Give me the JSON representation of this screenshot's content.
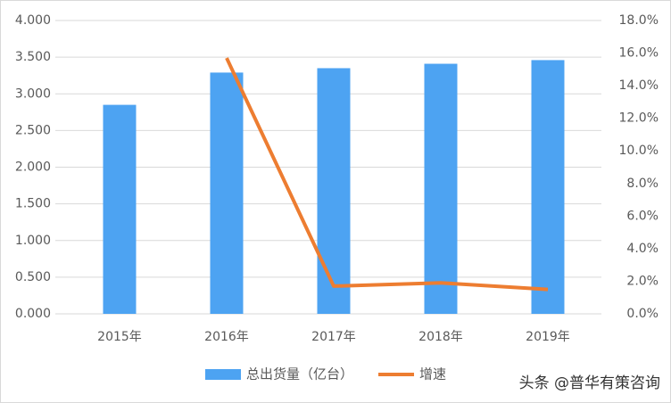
{
  "chart_data": {
    "type": "bar",
    "categories": [
      "2015年",
      "2016年",
      "2017年",
      "2018年",
      "2019年"
    ],
    "series": [
      {
        "name": "总出货量（亿台）",
        "color": "#4da3f2",
        "type": "bar",
        "values": [
          2.85,
          3.29,
          3.35,
          3.41,
          3.46
        ]
      },
      {
        "name": "增速",
        "color": "#ed7d31",
        "type": "line",
        "axis": "y2",
        "values": [
          null,
          15.7,
          1.7,
          1.9,
          1.5
        ]
      }
    ],
    "ylim": [
      0,
      4
    ],
    "yticks": [
      {
        "value": 0,
        "label": "0.000"
      },
      {
        "value": 0.5,
        "label": "0.500"
      },
      {
        "value": 1,
        "label": "1.000"
      },
      {
        "value": 1.5,
        "label": "1.500"
      },
      {
        "value": 2,
        "label": "2.000"
      },
      {
        "value": 2.5,
        "label": "2.500"
      },
      {
        "value": 3,
        "label": "3.000"
      },
      {
        "value": 3.5,
        "label": "3.500"
      },
      {
        "value": 4,
        "label": "4.000"
      }
    ],
    "y2lim": [
      0,
      18
    ],
    "y2ticks": [
      {
        "value": 0,
        "label": "0.0%"
      },
      {
        "value": 2,
        "label": "2.0%"
      },
      {
        "value": 4,
        "label": "4.0%"
      },
      {
        "value": 6,
        "label": "6.0%"
      },
      {
        "value": 8,
        "label": "8.0%"
      },
      {
        "value": 10,
        "label": "10.0%"
      },
      {
        "value": 12,
        "label": "12.0%"
      },
      {
        "value": 14,
        "label": "14.0%"
      },
      {
        "value": 16,
        "label": "16.0%"
      },
      {
        "value": 18,
        "label": "18.0%"
      }
    ],
    "grid": true,
    "legend": "bottom",
    "watermark": "头条 @普华有策咨询"
  }
}
